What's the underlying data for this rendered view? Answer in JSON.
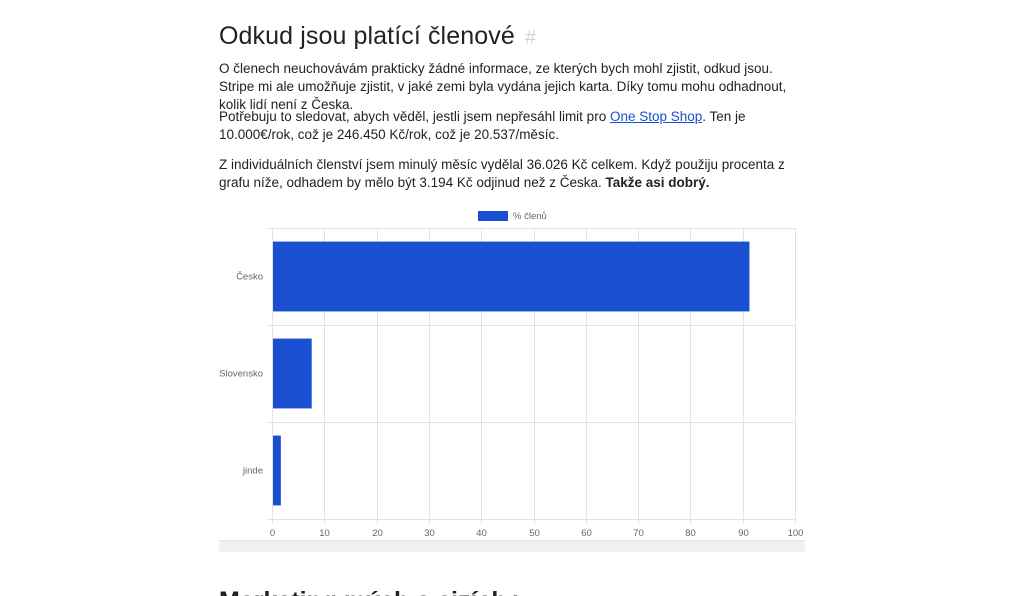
{
  "section": {
    "title": "Odkud jsou platící členové",
    "anchor": "#"
  },
  "paragraphs": {
    "p1": "O členech neuchovávám prakticky žádné informace, ze kterých bych mohl zjistit, odkud jsou. Stripe mi ale umožňuje zjistit, v jaké zemi byla vydána jejich karta. Díky tomu mohu odhadnout, kolik lidí není z Česka.",
    "p2_before": "Potřebuju to sledovat, abych věděl, jestli jsem nepřesáhl limit pro ",
    "p2_link": "One Stop Shop",
    "p2_after": ". Ten je 10.000€/rok, což je 246.450 Kč/rok, což je 20.537/měsíc.",
    "p3_before": "Z individuálních členství jsem minulý měsíc vydělal 36.026 Kč celkem. Když použiju procenta z grafu níže, odhadem by mělo být 3.194 Kč odjinud než z Česka. ",
    "p3_bold": "Takže asi dobrý."
  },
  "chart_data": {
    "type": "bar",
    "orientation": "horizontal",
    "categories": [
      "Česko",
      "Slovensko",
      "jinde"
    ],
    "series": [
      {
        "name": "% členů",
        "values": [
          91.1,
          7.4,
          1.5
        ]
      }
    ],
    "xlim": [
      0,
      100
    ],
    "xticks": [
      "0",
      "10",
      "20",
      "30",
      "40",
      "50",
      "60",
      "70",
      "80",
      "90",
      "100"
    ],
    "grid": true,
    "legend": "top",
    "bar_color": "#1a4fd1"
  },
  "next_section": {
    "title": "Marketing mých a cizích videí"
  }
}
